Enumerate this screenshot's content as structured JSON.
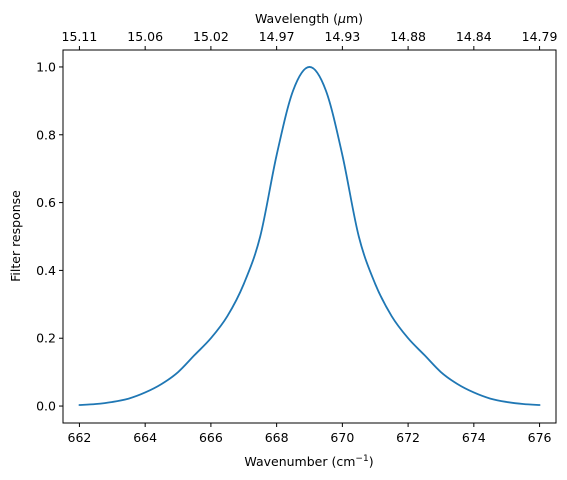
{
  "chart_data": {
    "type": "line",
    "colors": {
      "series": "#1f77b4",
      "axes": "#000000",
      "background": "#ffffff"
    },
    "xlabel": "Wavenumber (cm",
    "xlabel_sup": "−1",
    "xlabel_end": ")",
    "ylabel": "Filter response",
    "top_xlabel_prefix": "Wavelength (",
    "top_xlabel_mu": "μ",
    "top_xlabel_suffix": "m)",
    "xlim": [
      661.5,
      676.5
    ],
    "ylim": [
      -0.05,
      1.05
    ],
    "x_ticks": [
      662,
      664,
      666,
      668,
      670,
      672,
      674,
      676
    ],
    "x_tick_labels": [
      "662",
      "664",
      "666",
      "668",
      "670",
      "672",
      "674",
      "676"
    ],
    "y_ticks": [
      0.0,
      0.2,
      0.4,
      0.6,
      0.8,
      1.0
    ],
    "y_tick_labels": [
      "0.0",
      "0.2",
      "0.4",
      "0.6",
      "0.8",
      "1.0"
    ],
    "top_x_ticks": [
      662,
      664,
      666,
      668,
      670,
      672,
      674,
      676
    ],
    "top_x_tick_labels": [
      "15.11",
      "15.06",
      "15.02",
      "14.97",
      "14.93",
      "14.88",
      "14.84",
      "14.79"
    ],
    "grid": false,
    "series": [
      {
        "x": [
          662,
          662.5,
          663,
          663.5,
          664,
          664.5,
          665,
          665.5,
          666,
          666.5,
          667,
          667.5,
          668,
          668.5,
          669,
          669.5,
          670,
          670.5,
          671,
          671.5,
          672,
          672.5,
          673,
          673.5,
          674,
          674.5,
          675,
          675.5,
          676
        ],
        "y": [
          0.003,
          0.006,
          0.012,
          0.022,
          0.04,
          0.065,
          0.1,
          0.15,
          0.2,
          0.265,
          0.36,
          0.5,
          0.74,
          0.93,
          1.0,
          0.93,
          0.74,
          0.5,
          0.36,
          0.265,
          0.2,
          0.15,
          0.1,
          0.065,
          0.04,
          0.022,
          0.012,
          0.006,
          0.003
        ]
      }
    ]
  }
}
